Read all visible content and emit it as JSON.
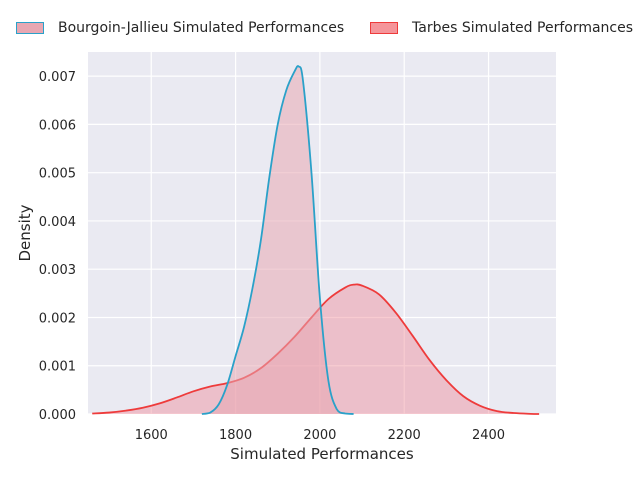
{
  "chart_data": {
    "type": "area",
    "title": "",
    "xlabel": "Simulated Performances",
    "ylabel": "Density",
    "xlim": [
      1450,
      2560
    ],
    "ylim": [
      0,
      0.0075
    ],
    "xticks": [
      1600,
      1800,
      2000,
      2200,
      2400
    ],
    "yticks": [
      0.0,
      0.001,
      0.002,
      0.003,
      0.004,
      0.005,
      0.006,
      0.007
    ],
    "ytick_labels": [
      "0.000",
      "0.001",
      "0.002",
      "0.003",
      "0.004",
      "0.005",
      "0.006",
      "0.007"
    ],
    "grid": true,
    "legend_position": "top",
    "series": [
      {
        "name": "Bourgoin-Jallieu Simulated Performances",
        "line_color": "#2aa1c9",
        "fill_color": "#e8a7b2",
        "fill_opacity": 0.55,
        "x": [
          1720,
          1740,
          1760,
          1780,
          1800,
          1820,
          1840,
          1860,
          1880,
          1900,
          1920,
          1940,
          1950,
          1960,
          1980,
          2000,
          2020,
          2040,
          2060,
          2080
        ],
        "y": [
          0.0,
          3e-05,
          0.0002,
          0.0006,
          0.0012,
          0.0018,
          0.0026,
          0.0036,
          0.0049,
          0.006,
          0.0067,
          0.0071,
          0.0072,
          0.0069,
          0.005,
          0.0024,
          0.0007,
          0.0001,
          1e-05,
          0.0
        ]
      },
      {
        "name": "Tarbes Simulated Performances",
        "line_color": "#ee3b3b",
        "fill_color": "#f08c9a",
        "fill_opacity": 0.45,
        "x": [
          1460,
          1500,
          1540,
          1580,
          1620,
          1660,
          1700,
          1740,
          1780,
          1820,
          1860,
          1900,
          1940,
          1980,
          2020,
          2060,
          2080,
          2100,
          2140,
          2180,
          2220,
          2260,
          2300,
          2340,
          2380,
          2420,
          2460,
          2500,
          2520
        ],
        "y": [
          1e-05,
          3e-05,
          7e-05,
          0.00013,
          0.00022,
          0.00034,
          0.00047,
          0.00057,
          0.00064,
          0.00075,
          0.00095,
          0.00125,
          0.0016,
          0.002,
          0.00238,
          0.00262,
          0.00268,
          0.00266,
          0.00248,
          0.0021,
          0.00162,
          0.00112,
          0.0007,
          0.00037,
          0.00017,
          6e-05,
          2e-05,
          3e-06,
          0.0
        ]
      }
    ]
  },
  "legend": {
    "items": [
      "Bourgoin-Jallieu Simulated Performances",
      "Tarbes Simulated Performances"
    ]
  },
  "colors": {
    "plot_background": "#eaeaf2",
    "grid": "#ffffff",
    "legend_swatch_1_fill": "#e8a7b2",
    "legend_swatch_1_border": "#2aa1c9",
    "legend_swatch_2_fill": "#f5959a",
    "legend_swatch_2_border": "#ee3b3b"
  }
}
